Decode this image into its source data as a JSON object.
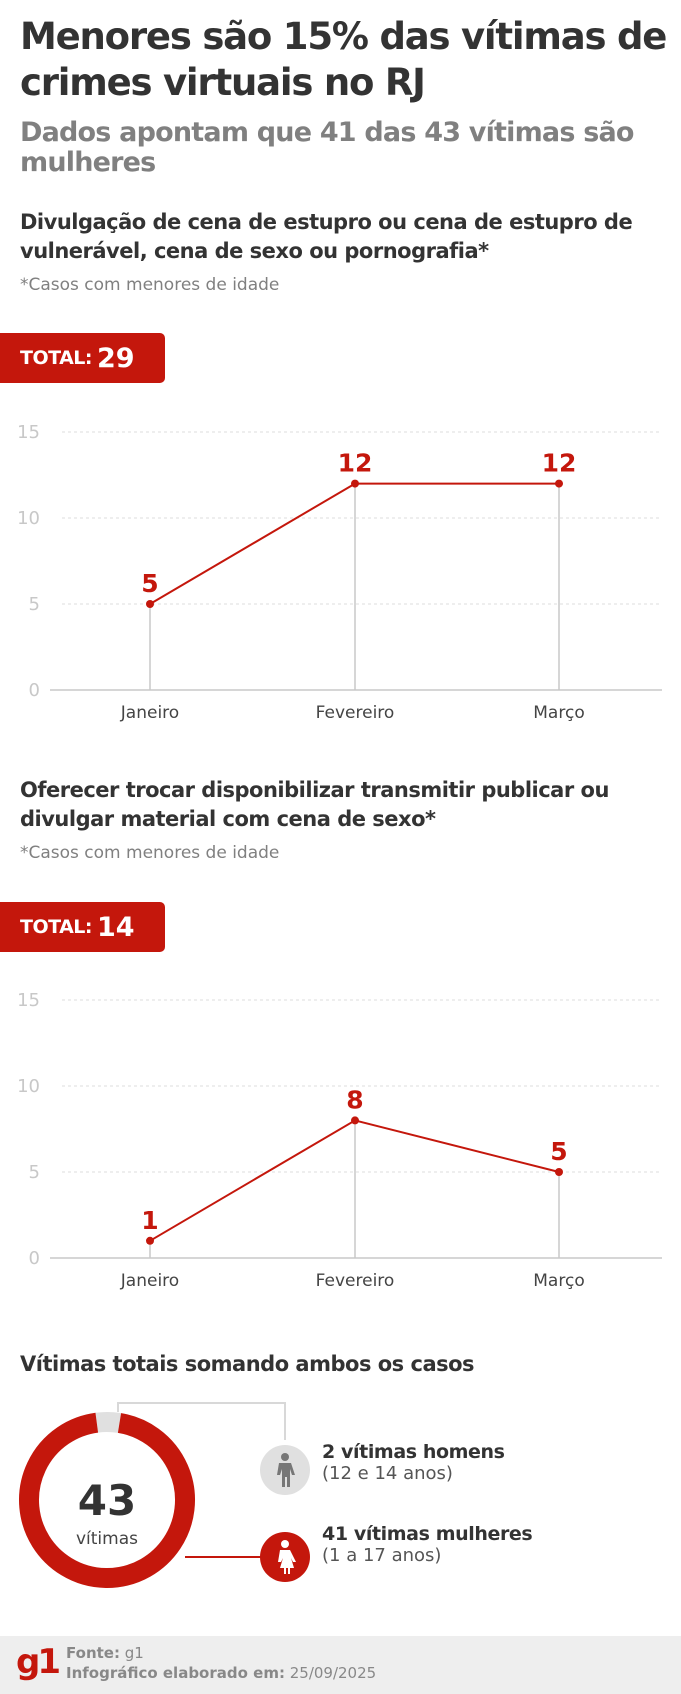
{
  "header": {
    "title": "Menores são 15% das vítimas de crimes virtuais no RJ",
    "subtitle": "Dados apontam que 41 das 43 vítimas são mulheres"
  },
  "sections": [
    {
      "title": "Divulgação de cena de estupro ou cena de estupro de vulnerável, cena de sexo ou pornografia*",
      "note": "*Casos com menores de idade",
      "total_label": "TOTAL:",
      "total_value": "29"
    },
    {
      "title": "Oferecer trocar disponibilizar transmitir publicar ou divulgar material com cena de sexo*",
      "note": "*Casos com menores de idade",
      "total_label": "TOTAL:",
      "total_value": "14"
    },
    {
      "title": "Vítimas totais somando ambos os casos"
    }
  ],
  "chart_data": [
    {
      "type": "line",
      "title": "Divulgação de cena de estupro ou cena de estupro de vulnerável, cena de sexo ou pornografia*",
      "categories": [
        "Janeiro",
        "Fevereiro",
        "Março"
      ],
      "values": [
        5,
        12,
        12
      ],
      "ylim": [
        0,
        15
      ],
      "yticks": [
        0,
        5,
        10,
        15
      ],
      "grid": true,
      "xlabel": "",
      "ylabel": ""
    },
    {
      "type": "line",
      "title": "Oferecer trocar disponibilizar transmitir publicar ou divulgar material com cena de sexo*",
      "categories": [
        "Janeiro",
        "Fevereiro",
        "Março"
      ],
      "values": [
        1,
        8,
        5
      ],
      "ylim": [
        0,
        15
      ],
      "yticks": [
        0,
        5,
        10,
        15
      ],
      "grid": true,
      "xlabel": "",
      "ylabel": ""
    },
    {
      "type": "pie",
      "title": "Vítimas totais somando ambos os casos",
      "center_value": "43",
      "center_label": "vítimas",
      "slices": [
        {
          "label": "2 vítimas homens",
          "detail": "(12 e 14 anos)",
          "value": 2,
          "color": "#e0e0e0",
          "icon": "male-person-icon"
        },
        {
          "label": "41 vítimas mulheres",
          "detail": "(1 a 17 anos)",
          "value": 41,
          "color": "#c4170c",
          "icon": "female-person-icon"
        }
      ]
    }
  ],
  "footer": {
    "logo": "g1",
    "source_label": "Fonte:",
    "source_value": "g1",
    "date_label": "Infográfico elaborado em:",
    "date_value": "25/09/2025"
  },
  "colors": {
    "accent": "#c4170c",
    "text": "#333333",
    "muted": "#808080",
    "grid": "#dddddd"
  }
}
